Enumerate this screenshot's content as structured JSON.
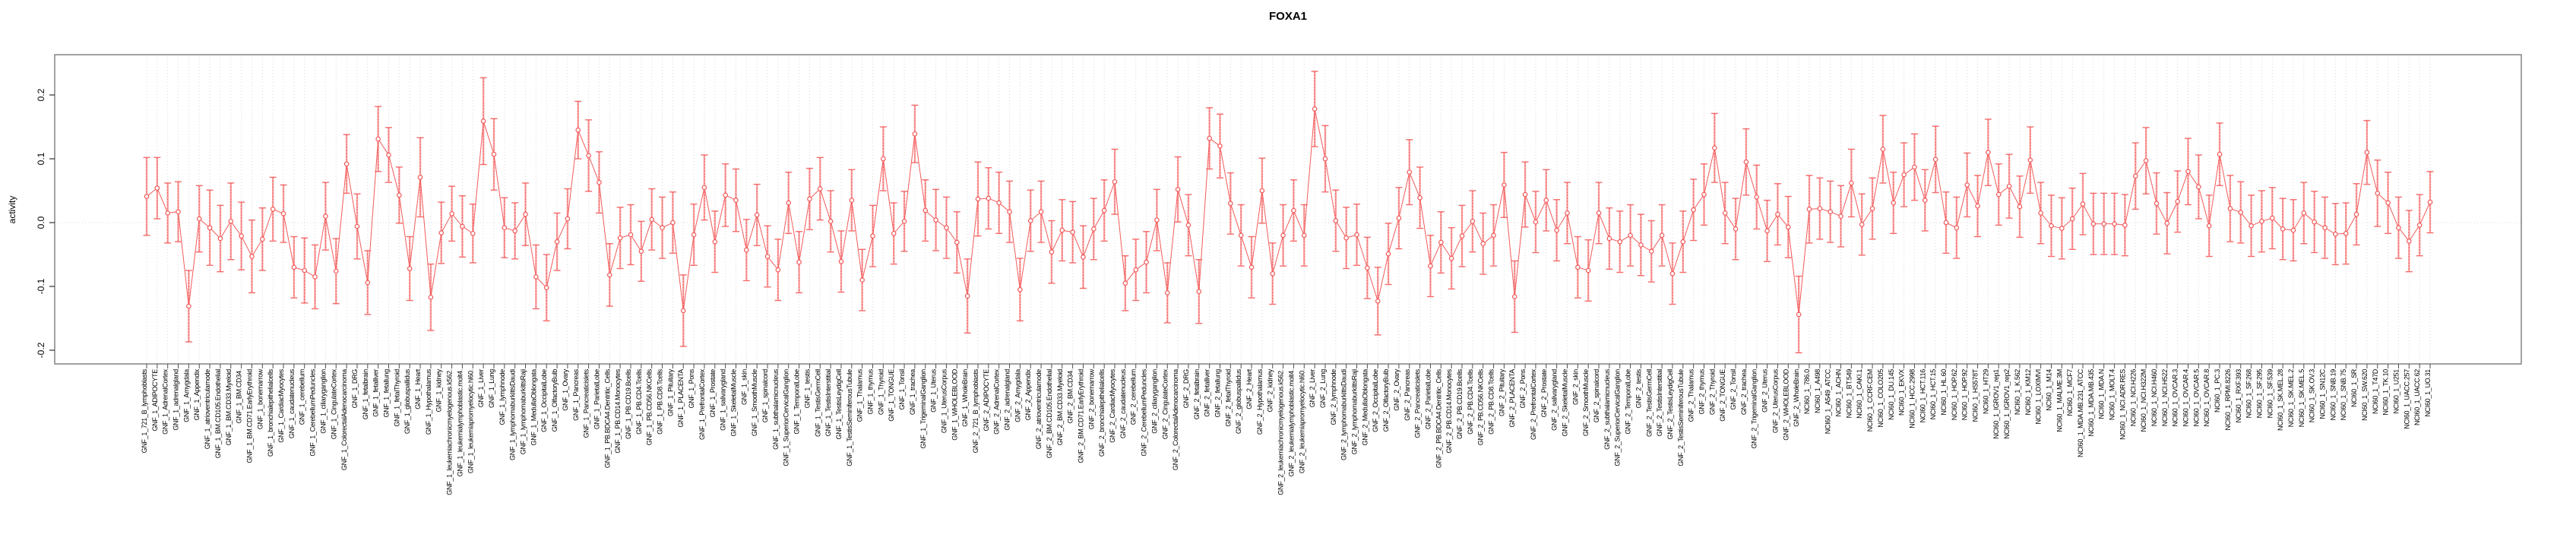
{
  "colors": {
    "line_red": "#f25b5b",
    "errorbar_light": "#f9a6a6",
    "cap_red": "#f56b6b",
    "grid_gray": "#d9d9d9",
    "box_gray": "#8a8a8a",
    "tick_gray": "#4d4d4d",
    "text_black": "#000000",
    "background": "#ffffff"
  },
  "chart_data": {
    "type": "line",
    "subtype": "points-with-error-bars",
    "title": "FOXA1",
    "xlabel": "",
    "ylabel": "activity",
    "ylim": [
      -0.221,
      0.263
    ],
    "yticks": [
      -0.2,
      -0.1,
      0.0,
      0.1,
      0.2
    ],
    "ytick_labels": [
      "-0.2",
      "-0.1",
      "0.0",
      "0.1",
      "0.2"
    ],
    "grid": "vertical dotted gridline at every category; dotted horizontal line at y=0",
    "legend": "none",
    "series_name": "activity",
    "categories": [
      "GNF_1_721_B_lymphoblasts",
      "GNF_1_ADIPOCYTE",
      "GNF_1_AdrenalCortex",
      "GNF_1_adrenalgland",
      "GNF_1_Amygdala",
      "GNF_1_Appendix",
      "GNF_1_atrioventricularnode",
      "GNF_1_BM.CD105.Endothelial",
      "GNF_1_BM.CD33.Myeloid",
      "GNF_1_BM.CD34.",
      "GNF_1_BM.CD71.EarlyErythroid",
      "GNF_1_bonemarrow",
      "GNF_1_bronchialepithelialcells",
      "GNF_1_CardiacMyocytes",
      "GNF_1_caudatenucleus",
      "GNF_1_cerebellum",
      "GNF_1_CerebellumPeduncles",
      "GNF_1_ciliaryganglion",
      "GNF_1_CingulateCortex",
      "GNF_1_ColorectalAdenocarcinoma",
      "GNF_1_DRG",
      "GNF_1_fetalbrain",
      "GNF_1_fetalliver",
      "GNF_1_fetallung",
      "GNF_1_fetalThyroid",
      "GNF_1_globuspallidus",
      "GNF_1_Heart",
      "GNF_1_Hypothalamus",
      "GNF_1_kidney",
      "GNF_1_leukemiachronicmyelogenous.k562.",
      "GNF_1_leukemialymphoblastic.molt4.",
      "GNF_1_leukemiapromyelocytic.hl60.",
      "GNF_1_Liver",
      "GNF_1_Lung",
      "GNF_1_lymphnode",
      "GNF_1_lymphomaburkittsDaudi",
      "GNF_1_lymphomaburkittsRaji",
      "GNF_1_MedullaOblongata",
      "GNF_1_OccipitalLobe",
      "GNF_1_OlfactoryBulb",
      "GNF_1_Ovary",
      "GNF_1_Pancreas",
      "GNF_1_Pancreaticislets",
      "GNF_1_ParietalLobe",
      "GNF_1_PB.BDCA4.Dentritic_Cells",
      "GNF_1_PB.CD14.Monocytes",
      "GNF_1_PB.CD19.Bcells",
      "GNF_1_PB.CD4.Tcells",
      "GNF_1_PB.CD56.NKCells",
      "GNF_1_PB.CD8.Tcells",
      "GNF_1_Pituitary",
      "GNF_1_PLACENTA",
      "GNF_1_Pons",
      "GNF_1_PrefrontalCortex",
      "GNF_1_Prostate",
      "GNF_1_salivarygland",
      "GNF_1_SkeletalMuscle",
      "GNF_1_skin",
      "GNF_1_SmoothMuscle",
      "GNF_1_spinalcord",
      "GNF_1_subthalamicnucleus",
      "GNF_1_SuperiorCervicalGanglion",
      "GNF_1_TemporalLobe",
      "GNF_1_testis",
      "GNF_1_TestisGermCell",
      "GNF_1_TestisInterstitial",
      "GNF_1_TestisLeydigCell",
      "GNF_1_TestisSeminiferousTubule",
      "GNF_1_Thalamus",
      "GNF_1_thymus",
      "GNF_1_Thyroid",
      "GNF_1_TONGUE",
      "GNF_1_Tonsil",
      "GNF_1_trachea",
      "GNF_1_TrigeminalGanglion",
      "GNF_1_Uterus",
      "GNF_1_UterusCorpus",
      "GNF_1_WHOLEBLOOD",
      "GNF_1_WholeBrain",
      "GNF_2_721_B_lymphoblasts",
      "GNF_2_ADIPOCYTE",
      "GNF_2_AdrenalCortex",
      "GNF_2_adrenalgland",
      "GNF_2_Amygdala",
      "GNF_2_Appendix",
      "GNF_2_atrioventricularnode",
      "GNF_2_BM.CD105.Endothelial",
      "GNF_2_BM.CD33.Myeloid",
      "GNF_2_BM.CD34.",
      "GNF_2_BM.CD71.EarlyErythroid",
      "GNF_2_bonemarrow",
      "GNF_2_bronchialepithelialcells",
      "GNF_2_CardiacMyocytes",
      "GNF_2_caudatenucleus",
      "GNF_2_cerebellum",
      "GNF_2_CerebellumPeduncles",
      "GNF_2_ciliaryganglion",
      "GNF_2_CingulateCortex",
      "GNF_2_ColorectalAdenocarcinoma",
      "GNF_2_DRG",
      "GNF_2_fetalbrain",
      "GNF_2_fetalliver",
      "GNF_2_fetallung",
      "GNF_2_fetalThyroid",
      "GNF_2_globuspallidus",
      "GNF_2_Heart",
      "GNF_2_Hypothalamus",
      "GNF_2_kidney",
      "GNF_2_leukemiachronicmyelogenous.k562.",
      "GNF_2_leukemialymphoblastic.molt4.",
      "GNF_2_leukemiapromyelocytic.hl60.",
      "GNF_2_Liver",
      "GNF_2_Lung",
      "GNF_2_lymphnode",
      "GNF_2_lymphomaburkittsDaudi",
      "GNF_2_lymphomaburkittsRaji",
      "GNF_2_MedullaOblongata",
      "GNF_2_OccipitalLobe",
      "GNF_2_OlfactoryBulb",
      "GNF_2_Ovary",
      "GNF_2_Pancreas",
      "GNF_2_Pancreaticislets",
      "GNF_2_ParietalLobe",
      "GNF_2_PB.BDCA4.Dentritic_Cells",
      "GNF_2_PB.CD14.Monocytes",
      "GNF_2_PB.CD19.Bcells",
      "GNF_2_PB.CD4.Tcells",
      "GNF_2_PB.CD56.NKCells",
      "GNF_2_PB.CD8.Tcells",
      "GNF_2_Pituitary",
      "GNF_2_PLACENTA",
      "GNF_2_Pons",
      "GNF_2_PrefrontalCortex",
      "GNF_2_Prostate",
      "GNF_2_salivarygland",
      "GNF_2_SkeletalMuscle",
      "GNF_2_skin",
      "GNF_2_SmoothMuscle",
      "GNF_2_spinalcord",
      "GNF_2_subthalamicnucleus",
      "GNF_2_SuperiorCervicalGanglion",
      "GNF_2_TemporalLobe",
      "GNF_2_testis",
      "GNF_2_TestisGermCell",
      "GNF_2_TestisInterstitial",
      "GNF_2_TestisLeydigCell",
      "GNF_2_TestisSeminiferousTubule",
      "GNF_2_Thalamus",
      "GNF_2_thymus",
      "GNF_2_Thyroid",
      "GNF_2_TONGUE",
      "GNF_2_Tonsil",
      "GNF_2_trachea",
      "GNF_2_TrigeminalGanglion",
      "GNF_2_Uterus",
      "GNF_2_UterusCorpus",
      "GNF_2_WHOLEBLOOD",
      "GNF_2_WholeBrain",
      "NCI60_1_786.0",
      "NCI60_1_A498",
      "NCI60_1_A549_ATCC",
      "NCI60_1_ACHN",
      "NCI60_1_BT.549",
      "NCI60_1_CAKI.1",
      "NCI60_1_CCRF.CEM",
      "NCI60_1_COLO205",
      "NCI60_1_DU.145",
      "NCI60_1_EKVX",
      "NCI60_1_HCC.2998",
      "NCI60_1_HCT.116",
      "NCI60_1_HCT.15",
      "NCI60_1_HL.60",
      "NCI60_1_HOP.62",
      "NCI60_1_HOP.92",
      "NCI60_1_HS578T",
      "NCI60_1_HT29",
      "NCI60_1_IGROV1_rep1",
      "NCI60_1_IGROV1_rep2",
      "NCI60_1_K.562",
      "NCI60_1_KM12",
      "NCI60_1_LOXIMVI",
      "NCI60_1_M14",
      "NCI60_1_MALME.3M",
      "NCI60_1_MCF7",
      "NCI60_1_MDA.MB.231_ATCC",
      "NCI60_1_MDA.MB.435",
      "NCI60_1_MDA.N",
      "NCI60_1_MOLT.4",
      "NCI60_1_NCI.ADR.RES",
      "NCI60_1_NCI.H226",
      "NCI60_1_NCI.H322M",
      "NCI60_1_NCI.H460",
      "NCI60_1_NCI.H522",
      "NCI60_1_OVCAR.3",
      "NCI60_1_OVCAR.4",
      "NCI60_1_OVCAR.5",
      "NCI60_1_OVCAR.8",
      "NCI60_1_PC.3",
      "NCI60_1_RPMI.8226",
      "NCI60_1_RXF.393",
      "NCI60_1_SF.268",
      "NCI60_1_SF.295",
      "NCI60_1_SF.539",
      "NCI60_1_SK.MEL.28",
      "NCI60_1_SK.MEL.2",
      "NCI60_1_SK.MEL.5",
      "NCI60_1_SK.OV.3",
      "NCI60_1_SN12C",
      "NCI60_1_SNB.19",
      "NCI60_1_SNB.75",
      "NCI60_1_SR",
      "NCI60_1_SW.620",
      "NCI60_1_T47D",
      "NCI60_1_TK.10",
      "NCI60_1_U251",
      "NCI60_1_UACC.257",
      "NCI60_1_UACC.62",
      "NCI60_1_UO.31"
    ],
    "values": [
      0.041,
      0.054,
      0.015,
      0.017,
      -0.131,
      0.006,
      -0.008,
      -0.025,
      0.002,
      -0.021,
      -0.053,
      -0.026,
      0.021,
      0.014,
      -0.07,
      -0.075,
      -0.085,
      0.01,
      -0.076,
      0.092,
      -0.006,
      -0.094,
      0.131,
      0.106,
      0.043,
      -0.072,
      0.071,
      -0.117,
      -0.016,
      0.014,
      -0.006,
      -0.017,
      0.159,
      0.107,
      -0.008,
      -0.013,
      0.013,
      -0.085,
      -0.102,
      -0.03,
      0.006,
      0.145,
      0.105,
      0.063,
      -0.082,
      -0.024,
      -0.019,
      -0.045,
      0.005,
      -0.008,
      0.0,
      -0.138,
      -0.019,
      0.055,
      -0.03,
      0.043,
      0.035,
      -0.043,
      0.012,
      -0.053,
      -0.074,
      0.031,
      -0.062,
      0.037,
      0.053,
      0.002,
      -0.061,
      0.035,
      -0.09,
      -0.021,
      0.1,
      -0.017,
      0.002,
      0.139,
      0.019,
      0.004,
      -0.008,
      -0.031,
      -0.115,
      0.037,
      0.038,
      0.031,
      0.017,
      -0.105,
      0.003,
      0.017,
      -0.046,
      -0.012,
      -0.015,
      -0.054,
      -0.01,
      0.019,
      0.064,
      -0.095,
      -0.074,
      -0.062,
      0.004,
      -0.11,
      0.052,
      -0.004,
      -0.108,
      0.132,
      0.12,
      0.03,
      -0.02,
      -0.07,
      0.05,
      -0.08,
      -0.02,
      0.019,
      -0.02,
      0.178,
      0.1,
      0.003,
      -0.024,
      -0.019,
      -0.071,
      -0.123,
      -0.049,
      0.007,
      0.079,
      0.039,
      -0.068,
      -0.031,
      -0.056,
      -0.021,
      0.002,
      -0.033,
      -0.02,
      0.059,
      -0.116,
      0.044,
      0.001,
      0.035,
      -0.012,
      0.015,
      -0.07,
      -0.075,
      0.015,
      -0.025,
      -0.03,
      -0.02,
      -0.035,
      -0.045,
      -0.02,
      -0.08,
      -0.03,
      0.02,
      0.044,
      0.117,
      0.015,
      -0.01,
      0.095,
      0.04,
      -0.013,
      0.013,
      -0.007,
      -0.144,
      0.021,
      0.022,
      0.017,
      0.01,
      0.062,
      -0.003,
      0.022,
      0.115,
      0.031,
      0.075,
      0.087,
      0.035,
      0.099,
      0.0,
      -0.008,
      0.059,
      0.026,
      0.11,
      0.044,
      0.057,
      0.025,
      0.098,
      0.015,
      -0.005,
      -0.009,
      0.006,
      0.029,
      -0.002,
      -0.002,
      -0.002,
      -0.004,
      0.073,
      0.097,
      0.03,
      -0.001,
      0.033,
      0.08,
      0.056,
      -0.005,
      0.107,
      0.022,
      0.016,
      -0.005,
      0.002,
      0.007,
      -0.01,
      -0.012,
      0.015,
      0.001,
      -0.008,
      -0.018,
      -0.017,
      0.013,
      0.11,
      0.046,
      0.031,
      -0.008,
      -0.029,
      -0.004,
      0.032
    ],
    "errors": [
      0.061,
      0.048,
      0.047,
      0.047,
      0.056,
      0.052,
      0.059,
      0.052,
      0.06,
      0.053,
      0.057,
      0.049,
      0.05,
      0.045,
      0.048,
      0.051,
      0.05,
      0.053,
      0.051,
      0.046,
      0.051,
      0.05,
      0.051,
      0.043,
      0.044,
      0.05,
      0.062,
      0.052,
      0.048,
      0.043,
      0.048,
      0.046,
      0.068,
      0.056,
      0.047,
      0.044,
      0.049,
      0.05,
      0.052,
      0.045,
      0.047,
      0.045,
      0.056,
      0.048,
      0.049,
      0.048,
      0.047,
      0.047,
      0.048,
      0.048,
      0.048,
      0.056,
      0.048,
      0.051,
      0.048,
      0.049,
      0.049,
      0.048,
      0.048,
      0.048,
      0.048,
      0.048,
      0.048,
      0.048,
      0.049,
      0.048,
      0.048,
      0.048,
      0.048,
      0.048,
      0.05,
      0.048,
      0.047,
      0.045,
      0.048,
      0.048,
      0.048,
      0.048,
      0.058,
      0.058,
      0.048,
      0.048,
      0.048,
      0.049,
      0.048,
      0.048,
      0.049,
      0.048,
      0.048,
      0.049,
      0.048,
      0.048,
      0.051,
      0.043,
      0.048,
      0.048,
      0.048,
      0.047,
      0.051,
      0.048,
      0.05,
      0.048,
      0.05,
      0.048,
      0.048,
      0.048,
      0.051,
      0.048,
      0.048,
      0.048,
      0.048,
      0.059,
      0.052,
      0.048,
      0.048,
      0.048,
      0.048,
      0.053,
      0.048,
      0.048,
      0.051,
      0.048,
      0.048,
      0.048,
      0.048,
      0.048,
      0.048,
      0.048,
      0.048,
      0.051,
      0.056,
      0.051,
      0.048,
      0.048,
      0.048,
      0.048,
      0.048,
      0.048,
      0.048,
      0.048,
      0.048,
      0.048,
      0.048,
      0.048,
      0.048,
      0.048,
      0.048,
      0.048,
      0.048,
      0.054,
      0.048,
      0.048,
      0.052,
      0.05,
      0.048,
      0.048,
      0.048,
      0.06,
      0.053,
      0.048,
      0.048,
      0.048,
      0.053,
      0.048,
      0.048,
      0.053,
      0.048,
      0.05,
      0.052,
      0.048,
      0.052,
      0.048,
      0.048,
      0.05,
      0.048,
      0.052,
      0.048,
      0.05,
      0.048,
      0.052,
      0.048,
      0.048,
      0.048,
      0.048,
      0.048,
      0.048,
      0.048,
      0.048,
      0.048,
      0.052,
      0.052,
      0.048,
      0.048,
      0.048,
      0.052,
      0.05,
      0.048,
      0.049,
      0.052,
      0.048,
      0.048,
      0.048,
      0.048,
      0.048,
      0.048,
      0.048,
      0.048,
      0.048,
      0.048,
      0.048,
      0.048,
      0.05,
      0.052,
      0.048,
      0.048,
      0.048,
      0.048,
      0.048
    ]
  }
}
